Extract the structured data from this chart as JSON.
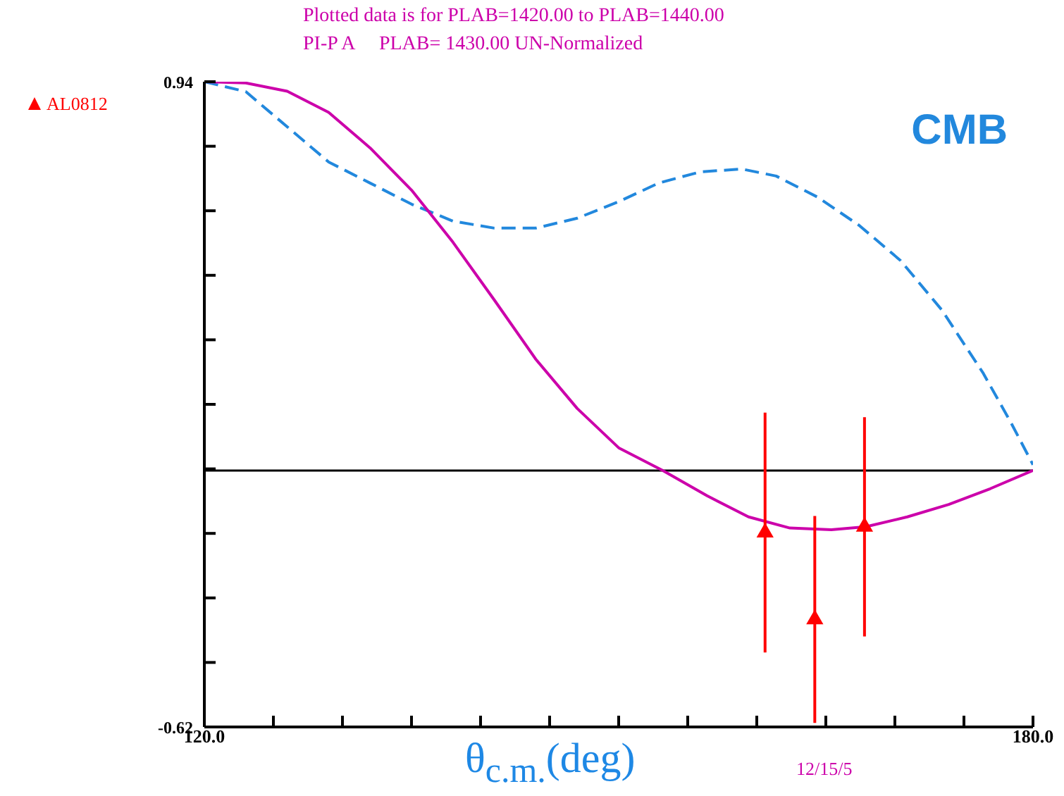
{
  "chart_data": {
    "type": "line",
    "title": "Plotted data is for PLAB=1420.00 to PLAB=1440.00",
    "subtitle": "PI-P A     PLAB= 1430.00 UN-Normalized",
    "xlabel": "θ$_{c.m.}$(deg)",
    "annotations": [
      "12/15/5"
    ],
    "xlim": [
      120,
      180
    ],
    "xticks": [
      {
        "value": 120,
        "label": "120.0"
      },
      {
        "value": 125,
        "label": null
      },
      {
        "value": 130,
        "label": null
      },
      {
        "value": 135,
        "label": null
      },
      {
        "value": 140,
        "label": null
      },
      {
        "value": 145,
        "label": null
      },
      {
        "value": 150,
        "label": null
      },
      {
        "value": 155,
        "label": null
      },
      {
        "value": 160,
        "label": null
      },
      {
        "value": 165,
        "label": null
      },
      {
        "value": 170,
        "label": null
      },
      {
        "value": 175,
        "label": null
      },
      {
        "value": 180,
        "label": "180.0"
      }
    ],
    "ylim": [
      -0.62,
      0.94
    ],
    "yticks": [
      {
        "value": -0.62,
        "label": "-0.62"
      },
      {
        "value": -0.464,
        "label": null
      },
      {
        "value": -0.308,
        "label": null
      },
      {
        "value": -0.152,
        "label": null
      },
      {
        "value": 0.004,
        "label": null
      },
      {
        "value": 0.16,
        "label": null
      },
      {
        "value": 0.316,
        "label": null
      },
      {
        "value": 0.472,
        "label": null
      },
      {
        "value": 0.628,
        "label": null
      },
      {
        "value": 0.784,
        "label": null
      },
      {
        "value": 0.94,
        "label": "0.94"
      }
    ],
    "ref_lines": [
      {
        "axis": "y",
        "value": 0,
        "color": "#000000"
      }
    ],
    "grid": false,
    "legend": "top left",
    "series": [
      {
        "name": "CMB",
        "color": "#2288dd",
        "line_style": "dashed",
        "x": [
          120,
          123,
          126,
          129,
          132,
          135,
          138,
          141,
          144,
          147,
          150,
          152.9,
          155.9,
          158.9,
          161.4,
          164.4,
          167.4,
          170.4,
          173.4,
          176.4,
          178.4,
          180
        ],
        "values": [
          0.94,
          0.916,
          0.831,
          0.746,
          0.695,
          0.644,
          0.603,
          0.586,
          0.586,
          0.61,
          0.65,
          0.695,
          0.722,
          0.729,
          0.712,
          0.661,
          0.593,
          0.508,
          0.388,
          0.235,
          0.116,
          0.014
        ]
      },
      {
        "color": "#cc00aa",
        "line_style": "solid",
        "x": [
          120,
          123,
          126,
          129,
          132,
          135,
          138,
          141,
          144,
          147,
          150,
          153.2,
          156.4,
          159.4,
          162.4,
          165.4,
          167.9,
          170.9,
          173.9,
          176.9,
          180
        ],
        "values": [
          0.94,
          0.937,
          0.917,
          0.866,
          0.78,
          0.678,
          0.552,
          0.412,
          0.269,
          0.15,
          0.055,
          0,
          -0.061,
          -0.112,
          -0.139,
          -0.143,
          -0.136,
          -0.112,
          -0.082,
          -0.044,
          0
        ]
      },
      {
        "name": "AL0812",
        "type": "scatter",
        "color": "#ff0000",
        "marker": "triangle",
        "x": [
          160.6,
          164.2,
          167.8
        ],
        "values": [
          -0.15,
          -0.36,
          -0.136
        ],
        "errors": [
          0.29,
          0.25,
          0.265
        ]
      }
    ]
  }
}
